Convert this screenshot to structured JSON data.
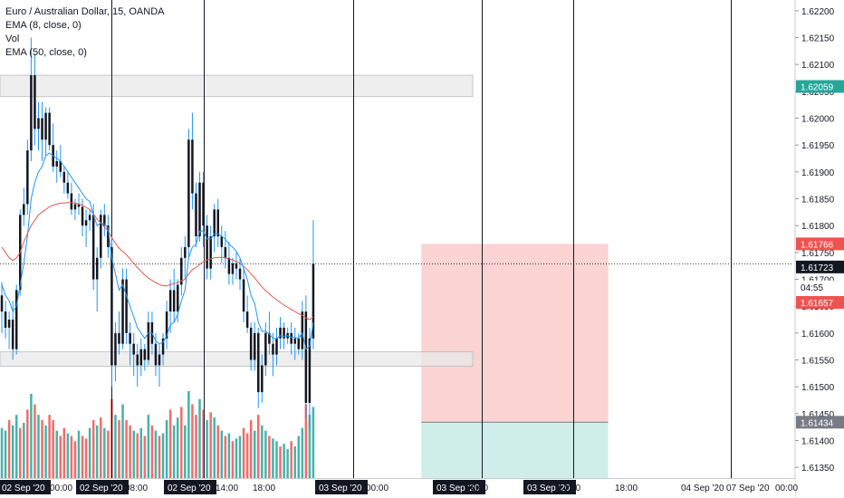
{
  "legend": {
    "symbol": "Euro / Australian Dollar, 15, OANDA",
    "ema_fast": "EMA (8, close, 0)",
    "volume": "Vol",
    "ema_slow": "EMA (50, close, 0)"
  },
  "colors": {
    "up": "#26a69a",
    "down": "#ef5350",
    "candle_body": "#131722",
    "wick": "#2196f3",
    "ema_fast": "#2196f3",
    "ema_slow": "#e05a4f",
    "zone": "#e8e8e8",
    "stop": "#fbd3d2",
    "target": "#cfeee9",
    "session_line": "#131722"
  },
  "price_axis": {
    "ticks": [
      "1.62200",
      "1.62150",
      "1.62100",
      "1.62050",
      "1.62000",
      "1.61950",
      "1.61900",
      "1.61850",
      "1.61800",
      "1.61750",
      "1.61700",
      "1.61650",
      "1.61600",
      "1.61550",
      "1.61500",
      "1.61450",
      "1.61400",
      "1.61350"
    ],
    "badges": [
      {
        "label": "1.62059",
        "value": 1.62059,
        "color": "#26a69a",
        "text": "#ffffff"
      },
      {
        "label": "1.61766",
        "value": 1.61766,
        "color": "#ef5350",
        "text": "#ffffff"
      },
      {
        "label": "1.61729",
        "value": 1.61729,
        "color": "#ffffff",
        "text": "#131722"
      },
      {
        "label": "1.61723",
        "value": 1.61723,
        "color": "#131722",
        "text": "#ffffff"
      },
      {
        "label": "04:55",
        "value": 1.61686,
        "color": "#ffffff",
        "text": "#131722"
      },
      {
        "label": "1.61657",
        "value": 1.61657,
        "color": "#ef5350",
        "text": "#ffffff"
      },
      {
        "label": "1.61434",
        "value": 1.61434,
        "color": "#787b86",
        "text": "#ffffff"
      }
    ]
  },
  "time_axis": {
    "labels": [
      {
        "text": "02 Sep '20",
        "bar": 0,
        "boxed": true
      },
      {
        "text": "00:00",
        "bar": 11,
        "boxed": false
      },
      {
        "text": "02 Sep '20",
        "bar": 18,
        "boxed": true
      },
      {
        "text": "08:00",
        "bar": 32,
        "boxed": false
      },
      {
        "text": "02 Sep '20",
        "bar": 44,
        "boxed": true
      },
      {
        "text": "14:00",
        "bar": 58,
        "boxed": false
      },
      {
        "text": "18:00",
        "bar": 71,
        "boxed": false
      },
      {
        "text": "03 Sep '20",
        "bar": 91,
        "boxed": true
      },
      {
        "text": "00:00",
        "bar": 104,
        "boxed": false
      },
      {
        "text": "03 Sep '20",
        "bar": 124,
        "boxed": true
      },
      {
        "text": "08:00",
        "bar": 0,
        "boxed": false
      },
      {
        "text": "03 Sep '20",
        "bar": 150,
        "boxed": true
      },
      {
        "text": "14:00",
        "bar": 0,
        "boxed": false
      },
      {
        "text": "18:00",
        "bar": 169,
        "boxed": false
      },
      {
        "text": "04 Sep '20",
        "bar": 192,
        "boxed": false
      },
      {
        "text": "07 Sep '20",
        "bar": 205,
        "boxed": false
      },
      {
        "text": "00:00",
        "bar": 218,
        "boxed": false
      }
    ]
  },
  "chart_data": {
    "type": "candlestick",
    "ylim": [
      1.6133,
      1.6222
    ],
    "x_bars": [
      -0.5,
      216
    ],
    "session_lines_bar": [
      30,
      55,
      96,
      131,
      156,
      199
    ],
    "last_price_line": 1.61729,
    "zones": [
      {
        "from": 1.6204,
        "to": 1.6208
      },
      {
        "from": 1.61538,
        "to": 1.61565
      }
    ],
    "position": {
      "bar_from": 114.5,
      "bar_to": 165.5,
      "entry": 1.61434,
      "stop": 1.61766,
      "target": 1.6133
    },
    "ohlc": [
      [
        1.6167,
        1.61695,
        1.616,
        1.6164
      ],
      [
        1.6164,
        1.6166,
        1.6159,
        1.6161
      ],
      [
        1.6161,
        1.6164,
        1.6157,
        1.61625
      ],
      [
        1.61625,
        1.6166,
        1.6155,
        1.6157
      ],
      [
        1.6157,
        1.6169,
        1.6156,
        1.6168
      ],
      [
        1.6168,
        1.6183,
        1.6167,
        1.6182
      ],
      [
        1.6182,
        1.6187,
        1.618,
        1.6184
      ],
      [
        1.6184,
        1.6196,
        1.6182,
        1.6194
      ],
      [
        1.6194,
        1.6215,
        1.6192,
        1.6208
      ],
      [
        1.6208,
        1.6212,
        1.6195,
        1.6198
      ],
      [
        1.6198,
        1.6203,
        1.6194,
        1.62
      ],
      [
        1.62,
        1.6203,
        1.6192,
        1.6196
      ],
      [
        1.6196,
        1.6202,
        1.6193,
        1.6201
      ],
      [
        1.6201,
        1.6202,
        1.6194,
        1.6195
      ],
      [
        1.6195,
        1.6199,
        1.619,
        1.6191
      ],
      [
        1.6191,
        1.6194,
        1.6188,
        1.6192
      ],
      [
        1.6192,
        1.6195,
        1.6189,
        1.619
      ],
      [
        1.619,
        1.6191,
        1.6186,
        1.6188
      ],
      [
        1.6188,
        1.619,
        1.6185,
        1.6186
      ],
      [
        1.6186,
        1.6188,
        1.6182,
        1.6183
      ],
      [
        1.6183,
        1.6185,
        1.6181,
        1.6184
      ],
      [
        1.6184,
        1.6186,
        1.6182,
        1.61835
      ],
      [
        1.61835,
        1.6185,
        1.6178,
        1.618
      ],
      [
        1.618,
        1.6183,
        1.6176,
        1.6181
      ],
      [
        1.6181,
        1.6183,
        1.6179,
        1.6182
      ],
      [
        1.6182,
        1.6184,
        1.6168,
        1.617
      ],
      [
        1.617,
        1.6176,
        1.6164,
        1.6174
      ],
      [
        1.6174,
        1.6183,
        1.6172,
        1.6182
      ],
      [
        1.6182,
        1.6184,
        1.6178,
        1.618
      ],
      [
        1.618,
        1.6182,
        1.6174,
        1.6176
      ],
      [
        1.6176,
        1.6178,
        1.615,
        1.6154
      ],
      [
        1.6154,
        1.6162,
        1.6151,
        1.616
      ],
      [
        1.616,
        1.6164,
        1.6156,
        1.6158
      ],
      [
        1.6158,
        1.6172,
        1.6157,
        1.617
      ],
      [
        1.617,
        1.6172,
        1.6158,
        1.616
      ],
      [
        1.616,
        1.6162,
        1.6154,
        1.6158
      ],
      [
        1.6158,
        1.616,
        1.6152,
        1.6156
      ],
      [
        1.6156,
        1.6158,
        1.615,
        1.6154
      ],
      [
        1.6154,
        1.6159,
        1.6152,
        1.6157
      ],
      [
        1.6157,
        1.6158,
        1.6153,
        1.6155
      ],
      [
        1.6155,
        1.6164,
        1.6154,
        1.6162
      ],
      [
        1.6162,
        1.6164,
        1.6156,
        1.6158
      ],
      [
        1.6158,
        1.616,
        1.6152,
        1.6154
      ],
      [
        1.6154,
        1.6158,
        1.615,
        1.6156
      ],
      [
        1.6156,
        1.616,
        1.6154,
        1.6159
      ],
      [
        1.6159,
        1.6166,
        1.6157,
        1.6164
      ],
      [
        1.6164,
        1.617,
        1.616,
        1.6168
      ],
      [
        1.6168,
        1.6172,
        1.6162,
        1.6164
      ],
      [
        1.6164,
        1.617,
        1.6162,
        1.6169
      ],
      [
        1.6169,
        1.6176,
        1.6167,
        1.6174
      ],
      [
        1.6174,
        1.6178,
        1.617,
        1.6176
      ],
      [
        1.6176,
        1.6198,
        1.6174,
        1.6196
      ],
      [
        1.6196,
        1.6201,
        1.6183,
        1.6186
      ],
      [
        1.6186,
        1.6188,
        1.6176,
        1.6178
      ],
      [
        1.6178,
        1.619,
        1.6177,
        1.6188
      ],
      [
        1.6188,
        1.619,
        1.6176,
        1.618
      ],
      [
        1.618,
        1.6182,
        1.617,
        1.6172
      ],
      [
        1.6172,
        1.618,
        1.617,
        1.6178
      ],
      [
        1.6178,
        1.6184,
        1.6175,
        1.6183
      ],
      [
        1.6183,
        1.6185,
        1.6176,
        1.6178
      ],
      [
        1.6178,
        1.618,
        1.6173,
        1.6176
      ],
      [
        1.6176,
        1.6179,
        1.6172,
        1.6174
      ],
      [
        1.6174,
        1.6177,
        1.6169,
        1.6171
      ],
      [
        1.6171,
        1.6174,
        1.6169,
        1.6173
      ],
      [
        1.6173,
        1.6175,
        1.617,
        1.6172
      ],
      [
        1.6172,
        1.6174,
        1.6168,
        1.617
      ],
      [
        1.617,
        1.6172,
        1.6162,
        1.6164
      ],
      [
        1.6164,
        1.6167,
        1.616,
        1.6161
      ],
      [
        1.6161,
        1.6162,
        1.6153,
        1.6155
      ],
      [
        1.6155,
        1.6162,
        1.6153,
        1.616
      ],
      [
        1.616,
        1.6161,
        1.6146,
        1.6149
      ],
      [
        1.6149,
        1.6156,
        1.6147,
        1.6154
      ],
      [
        1.6154,
        1.6162,
        1.6152,
        1.616
      ],
      [
        1.616,
        1.6164,
        1.6156,
        1.6158
      ],
      [
        1.6158,
        1.616,
        1.6152,
        1.6156
      ],
      [
        1.6156,
        1.6161,
        1.6154,
        1.6159
      ],
      [
        1.6159,
        1.6163,
        1.6157,
        1.6161
      ],
      [
        1.6161,
        1.6162,
        1.6157,
        1.6159
      ],
      [
        1.6159,
        1.6161,
        1.6158,
        1.616
      ],
      [
        1.616,
        1.6162,
        1.6156,
        1.6158
      ],
      [
        1.6158,
        1.6161,
        1.6155,
        1.6159
      ],
      [
        1.6159,
        1.616,
        1.6156,
        1.6157
      ],
      [
        1.6157,
        1.6166,
        1.6155,
        1.6164
      ],
      [
        1.6164,
        1.6167,
        1.6144,
        1.6147
      ],
      [
        1.6147,
        1.6161,
        1.6142,
        1.6159
      ],
      [
        1.6159,
        1.6181,
        1.6157,
        1.61729
      ]
    ],
    "ema_fast": [
      1.6169,
      1.6167,
      1.6166,
      1.6164,
      1.6165,
      1.6169,
      1.6173,
      1.6178,
      1.6185,
      1.6188,
      1.619,
      1.6191,
      1.6193,
      1.61935,
      1.6193,
      1.61925,
      1.6192,
      1.6191,
      1.619,
      1.6189,
      1.6188,
      1.6187,
      1.6186,
      1.6185,
      1.61845,
      1.6182,
      1.618,
      1.61805,
      1.61803,
      1.61795,
      1.6174,
      1.6171,
      1.6168,
      1.6169,
      1.6167,
      1.6165,
      1.6163,
      1.6161,
      1.616,
      1.6159,
      1.616,
      1.616,
      1.61585,
      1.6158,
      1.61583,
      1.61595,
      1.61615,
      1.6162,
      1.61635,
      1.6166,
      1.6168,
      1.6174,
      1.6176,
      1.61765,
      1.6179,
      1.6179,
      1.61775,
      1.61775,
      1.61785,
      1.61785,
      1.6178,
      1.61775,
      1.61765,
      1.6176,
      1.61752,
      1.6174,
      1.6172,
      1.617,
      1.6167,
      1.61655,
      1.6162,
      1.61603,
      1.61603,
      1.61598,
      1.6159,
      1.6159,
      1.61595,
      1.61594,
      1.61595,
      1.61592,
      1.61592,
      1.6159,
      1.616,
      1.6157,
      1.61575,
      1.6162
    ],
    "ema_slow": [
      1.6176,
      1.6175,
      1.6174,
      1.61735,
      1.6174,
      1.6175,
      1.6177,
      1.61785,
      1.618,
      1.6181,
      1.6182,
      1.61825,
      1.6183,
      1.61835,
      1.61838,
      1.6184,
      1.61842,
      1.61842,
      1.61843,
      1.61843,
      1.61842,
      1.6184,
      1.61838,
      1.61834,
      1.6183,
      1.61822,
      1.61812,
      1.61805,
      1.61798,
      1.6179,
      1.61778,
      1.61767,
      1.61758,
      1.61752,
      1.61746,
      1.61738,
      1.6173,
      1.61722,
      1.61715,
      1.61708,
      1.61702,
      1.61698,
      1.61694,
      1.6169,
      1.61688,
      1.61688,
      1.6169,
      1.61692,
      1.61694,
      1.61697,
      1.617,
      1.6171,
      1.61718,
      1.61722,
      1.61728,
      1.61733,
      1.61736,
      1.61738,
      1.6174,
      1.61741,
      1.61741,
      1.6174,
      1.61738,
      1.61736,
      1.61733,
      1.6173,
      1.61724,
      1.61718,
      1.6171,
      1.61703,
      1.61694,
      1.61686,
      1.61679,
      1.61673,
      1.61667,
      1.61662,
      1.61657,
      1.61652,
      1.61648,
      1.61644,
      1.6164,
      1.61636,
      1.61633,
      1.61628,
      1.61625,
      1.6163
    ],
    "volume": [
      [
        95,
        1
      ],
      [
        90,
        1
      ],
      [
        110,
        0
      ],
      [
        100,
        1
      ],
      [
        120,
        1
      ],
      [
        95,
        0
      ],
      [
        105,
        1
      ],
      [
        130,
        0
      ],
      [
        160,
        1
      ],
      [
        140,
        0
      ],
      [
        120,
        1
      ],
      [
        110,
        0
      ],
      [
        100,
        1
      ],
      [
        120,
        0
      ],
      [
        110,
        0
      ],
      [
        90,
        1
      ],
      [
        80,
        0
      ],
      [
        95,
        0
      ],
      [
        85,
        1
      ],
      [
        80,
        0
      ],
      [
        70,
        0
      ],
      [
        90,
        1
      ],
      [
        80,
        0
      ],
      [
        75,
        0
      ],
      [
        95,
        1
      ],
      [
        110,
        0
      ],
      [
        100,
        1
      ],
      [
        115,
        0
      ],
      [
        95,
        1
      ],
      [
        90,
        0
      ],
      [
        150,
        0
      ],
      [
        120,
        1
      ],
      [
        110,
        0
      ],
      [
        140,
        1
      ],
      [
        110,
        0
      ],
      [
        100,
        0
      ],
      [
        90,
        1
      ],
      [
        85,
        0
      ],
      [
        95,
        1
      ],
      [
        80,
        0
      ],
      [
        120,
        1
      ],
      [
        100,
        0
      ],
      [
        90,
        1
      ],
      [
        80,
        0
      ],
      [
        85,
        1
      ],
      [
        110,
        1
      ],
      [
        130,
        0
      ],
      [
        100,
        1
      ],
      [
        115,
        1
      ],
      [
        135,
        0
      ],
      [
        100,
        1
      ],
      [
        165,
        1
      ],
      [
        140,
        0
      ],
      [
        120,
        0
      ],
      [
        150,
        1
      ],
      [
        130,
        0
      ],
      [
        110,
        1
      ],
      [
        125,
        0
      ],
      [
        115,
        1
      ],
      [
        100,
        0
      ],
      [
        90,
        1
      ],
      [
        80,
        0
      ],
      [
        85,
        1
      ],
      [
        70,
        0
      ],
      [
        75,
        1
      ],
      [
        80,
        1
      ],
      [
        95,
        0
      ],
      [
        85,
        0
      ],
      [
        110,
        0
      ],
      [
        90,
        1
      ],
      [
        120,
        0
      ],
      [
        100,
        1
      ],
      [
        90,
        1
      ],
      [
        80,
        0
      ],
      [
        75,
        1
      ],
      [
        70,
        1
      ],
      [
        60,
        0
      ],
      [
        65,
        1
      ],
      [
        55,
        1
      ],
      [
        70,
        0
      ],
      [
        60,
        1
      ],
      [
        80,
        1
      ],
      [
        95,
        1
      ],
      [
        140,
        0
      ],
      [
        120,
        1
      ],
      [
        135,
        1
      ]
    ]
  }
}
